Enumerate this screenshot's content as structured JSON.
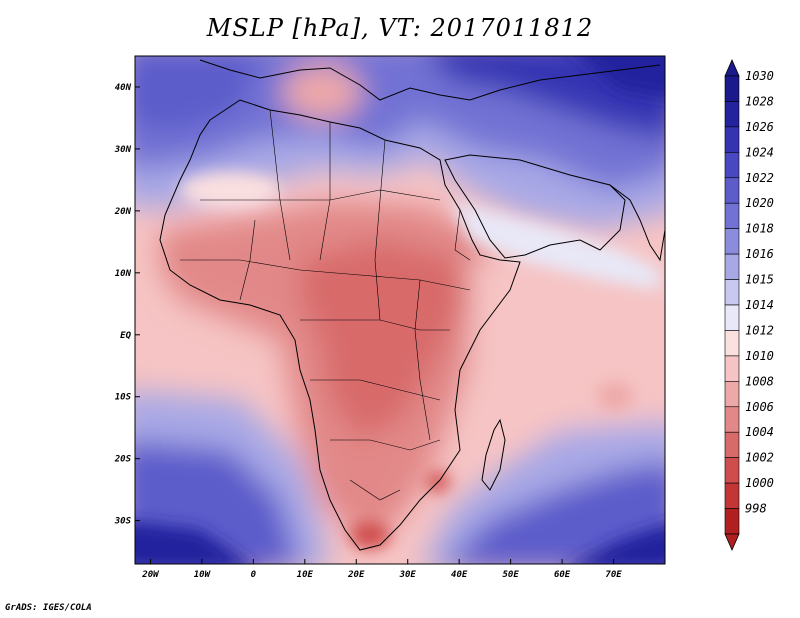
{
  "title": "MSLP [hPa], VT: 2017011812",
  "credit": "GrADS: IGES/COLA",
  "axes": {
    "lon_labels": [
      "20W",
      "10W",
      "0",
      "10E",
      "20E",
      "30E",
      "40E",
      "50E",
      "60E",
      "70E"
    ],
    "lon_values": [
      -20,
      -10,
      0,
      10,
      20,
      30,
      40,
      50,
      60,
      70
    ],
    "lat_labels": [
      "40N",
      "30N",
      "20N",
      "10N",
      "EQ",
      "10S",
      "20S",
      "30S"
    ],
    "lat_values": [
      40,
      30,
      20,
      10,
      0,
      -10,
      -20,
      -30
    ],
    "lon_range": [
      -23,
      80
    ],
    "lat_range": [
      -37,
      45
    ]
  },
  "colorbar": {
    "levels": [
      "1030",
      "1028",
      "1026",
      "1024",
      "1022",
      "1020",
      "1018",
      "1016",
      "1015",
      "1014",
      "1012",
      "1010",
      "1008",
      "1006",
      "1004",
      "1002",
      "1000",
      "998"
    ],
    "colors": [
      "#1a1a8c",
      "#23239e",
      "#3434b3",
      "#4848c0",
      "#5c5ccb",
      "#7272d4",
      "#8c8cdd",
      "#a8a8e6",
      "#c8c8f0",
      "#e8e8f8",
      "#fbe0e0",
      "#f6c4c4",
      "#eda8a8",
      "#e28888",
      "#d86a6a",
      "#d04d4d",
      "#c43636",
      "#b02020"
    ]
  },
  "regions": [
    {
      "name": "north-africa-high",
      "level": "1020"
    },
    {
      "name": "sahel-low",
      "level": "1006"
    },
    {
      "name": "central-africa-low",
      "level": "1004"
    },
    {
      "name": "southern-africa-low",
      "level": "1004"
    },
    {
      "name": "southern-ocean-high",
      "level": "1028"
    },
    {
      "name": "asia-high",
      "level": "1028"
    }
  ]
}
